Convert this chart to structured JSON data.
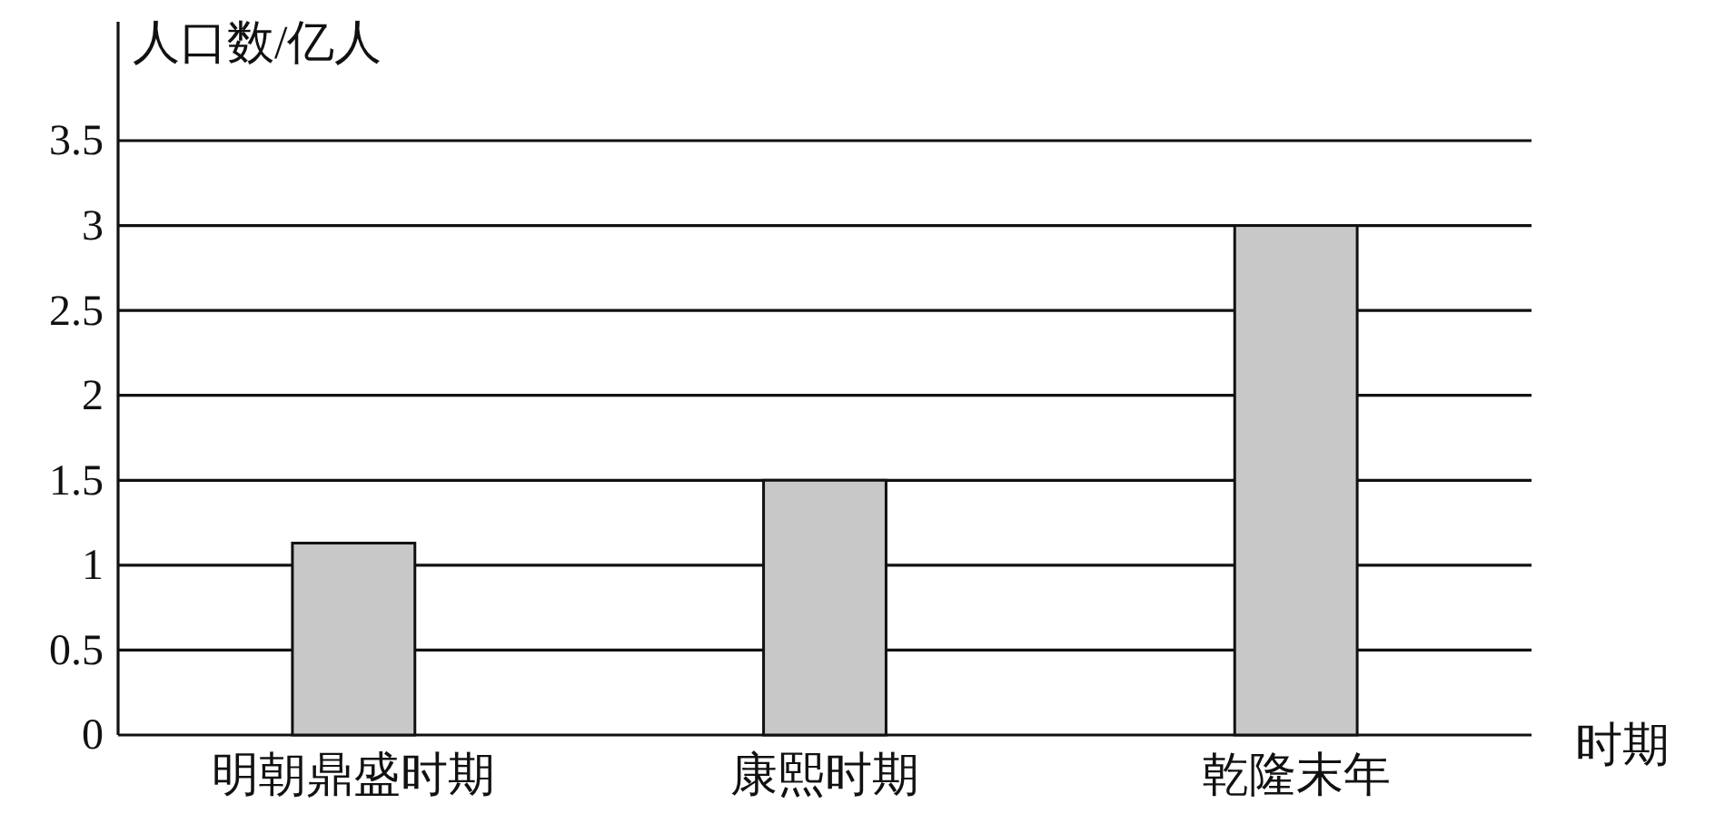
{
  "chart_data": {
    "type": "bar",
    "xlabel": "时期",
    "ylabel": "人口数/亿人",
    "categories": [
      "明朝鼎盛时期",
      "康熙时期",
      "乾隆末年"
    ],
    "values": [
      1.13,
      1.5,
      3
    ],
    "color": "#c8c8c8",
    "ylim": [
      0,
      4.2
    ],
    "yticks": [
      0,
      0.5,
      1,
      1.5,
      2,
      2.5,
      3,
      3.5
    ],
    "grid": "y"
  }
}
